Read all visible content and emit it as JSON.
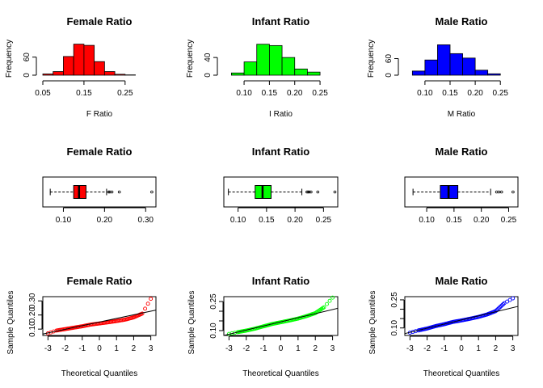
{
  "chart_data": [
    {
      "type": "histogram",
      "title": "Female Ratio",
      "xlabel": "F Ratio",
      "ylabel": "Frequency",
      "color": "#ff0000",
      "bin_edges": [
        0.05,
        0.075,
        0.1,
        0.125,
        0.15,
        0.175,
        0.2,
        0.225,
        0.25,
        0.275,
        0.3,
        0.325
      ],
      "counts": [
        4,
        12,
        62,
        103,
        99,
        45,
        12,
        3,
        1,
        0,
        0
      ],
      "xlim": [
        0.05,
        0.325
      ],
      "ylim": [
        0,
        110
      ],
      "xticks": [
        0.05,
        0.15,
        0.25
      ],
      "xtick_labels": [
        "0.05",
        "0.15",
        "0.25"
      ],
      "yticks": [
        0,
        60
      ],
      "ytick_labels": [
        "0",
        "60"
      ]
    },
    {
      "type": "histogram",
      "title": "Infant Ratio",
      "xlabel": "I Ratio",
      "ylabel": "Frequency",
      "color": "#00ff00",
      "bin_edges": [
        0.075,
        0.1,
        0.125,
        0.15,
        0.175,
        0.2,
        0.225,
        0.25
      ],
      "counts": [
        5,
        30,
        70,
        67,
        40,
        14,
        7
      ],
      "xlim": [
        0.06,
        0.285
      ],
      "ylim": [
        0,
        75
      ],
      "xticks": [
        0.1,
        0.15,
        0.2,
        0.25
      ],
      "xtick_labels": [
        "0.10",
        "0.15",
        "0.20",
        "0.25"
      ],
      "yticks": [
        0,
        40
      ],
      "ytick_labels": [
        "0",
        "40"
      ]
    },
    {
      "type": "histogram",
      "title": "Male Ratio",
      "xlabel": "M Ratio",
      "ylabel": "Frequency",
      "color": "#0000ff",
      "bin_edges": [
        0.075,
        0.1,
        0.125,
        0.15,
        0.175,
        0.2,
        0.225,
        0.25
      ],
      "counts": [
        15,
        55,
        110,
        78,
        62,
        18,
        5
      ],
      "xlim": [
        0.06,
        0.285
      ],
      "ylim": [
        0,
        120
      ],
      "xticks": [
        0.1,
        0.15,
        0.2,
        0.25
      ],
      "xtick_labels": [
        "0.10",
        "0.15",
        "0.20",
        "0.25"
      ],
      "yticks": [
        0,
        60
      ],
      "ytick_labels": [
        "0",
        "60"
      ]
    },
    {
      "type": "boxplot",
      "title": "Female Ratio",
      "color": "#ff0000",
      "q1": 0.125,
      "median": 0.138,
      "q3": 0.155,
      "whisker_low": 0.068,
      "whisker_high": 0.205,
      "outliers": [
        0.21,
        0.213,
        0.218,
        0.236,
        0.315
      ],
      "xlim": [
        0.05,
        0.325
      ],
      "xticks": [
        0.1,
        0.2,
        0.3
      ],
      "xtick_labels": [
        "0.10",
        "0.20",
        "0.30"
      ]
    },
    {
      "type": "boxplot",
      "title": "Infant Ratio",
      "color": "#00ff00",
      "q1": 0.13,
      "median": 0.143,
      "q3": 0.158,
      "whisker_low": 0.083,
      "whisker_high": 0.212,
      "outliers": [
        0.221,
        0.223,
        0.225,
        0.228,
        0.24,
        0.27
      ],
      "xlim": [
        0.075,
        0.275
      ],
      "xticks": [
        0.1,
        0.15,
        0.2,
        0.25
      ],
      "xtick_labels": [
        "0.10",
        "0.15",
        "0.20",
        "0.25"
      ]
    },
    {
      "type": "boxplot",
      "title": "Male Ratio",
      "color": "#0000ff",
      "q1": 0.125,
      "median": 0.14,
      "q3": 0.157,
      "whisker_low": 0.075,
      "whisker_high": 0.217,
      "outliers": [
        0.228,
        0.232,
        0.237,
        0.258
      ],
      "xlim": [
        0.06,
        0.267
      ],
      "xticks": [
        0.1,
        0.15,
        0.2,
        0.25
      ],
      "xtick_labels": [
        "0.10",
        "0.15",
        "0.20",
        "0.25"
      ]
    },
    {
      "type": "scatter",
      "subtype": "qqplot",
      "title": "Female Ratio",
      "xlabel": "Theoretical Quantiles",
      "ylabel": "Sample Quantiles",
      "color": "#ff0000",
      "quantile_points": [
        [
          -3,
          0.07
        ],
        [
          -2.5,
          0.09
        ],
        [
          -2,
          0.1
        ],
        [
          -1.5,
          0.11
        ],
        [
          -1,
          0.12
        ],
        [
          -0.5,
          0.132
        ],
        [
          0,
          0.14
        ],
        [
          0.5,
          0.148
        ],
        [
          1,
          0.157
        ],
        [
          1.5,
          0.167
        ],
        [
          2,
          0.183
        ],
        [
          2.5,
          0.21
        ],
        [
          3,
          0.315
        ]
      ],
      "line": [
        [
          -3.3,
          0.065
        ],
        [
          3.3,
          0.235
        ]
      ],
      "xlim": [
        -3.3,
        3.3
      ],
      "ylim": [
        0.055,
        0.33
      ],
      "xticks": [
        -3,
        -2,
        -1,
        0,
        1,
        2,
        3
      ],
      "xtick_labels": [
        "-3",
        "-2",
        "-1",
        "0",
        "1",
        "2",
        "3"
      ],
      "yticks": [
        0.1,
        0.2,
        0.3
      ],
      "ytick_labels": [
        "0.10",
        "0.20",
        "0.30"
      ]
    },
    {
      "type": "scatter",
      "subtype": "qqplot",
      "title": "Infant Ratio",
      "xlabel": "Theoretical Quantiles",
      "ylabel": "Sample Quantiles",
      "color": "#00ff00",
      "quantile_points": [
        [
          -3,
          0.083
        ],
        [
          -2.5,
          0.092
        ],
        [
          -2,
          0.1
        ],
        [
          -1.5,
          0.11
        ],
        [
          -1,
          0.122
        ],
        [
          -0.5,
          0.134
        ],
        [
          0,
          0.143
        ],
        [
          0.5,
          0.152
        ],
        [
          1,
          0.162
        ],
        [
          1.5,
          0.175
        ],
        [
          2,
          0.19
        ],
        [
          2.5,
          0.22
        ],
        [
          3,
          0.27
        ]
      ],
      "line": [
        [
          -3.3,
          0.075
        ],
        [
          3.3,
          0.215
        ]
      ],
      "xlim": [
        -3.3,
        3.3
      ],
      "ylim": [
        0.075,
        0.275
      ],
      "xticks": [
        -3,
        -2,
        -1,
        0,
        1,
        2,
        3
      ],
      "xtick_labels": [
        "-3",
        "-2",
        "-1",
        "0",
        "1",
        "2",
        "3"
      ],
      "yticks": [
        0.1,
        0.15,
        0.2,
        0.25
      ],
      "ytick_labels": [
        "0.10",
        "",
        "",
        "0.25"
      ]
    },
    {
      "type": "scatter",
      "subtype": "qqplot",
      "title": "Male Ratio",
      "xlabel": "Theoretical Quantiles",
      "ylabel": "Sample Quantiles",
      "color": "#0000ff",
      "quantile_points": [
        [
          -3,
          0.075
        ],
        [
          -2.5,
          0.087
        ],
        [
          -2,
          0.097
        ],
        [
          -1.5,
          0.11
        ],
        [
          -1,
          0.12
        ],
        [
          -0.5,
          0.132
        ],
        [
          0,
          0.14
        ],
        [
          0.5,
          0.149
        ],
        [
          1,
          0.159
        ],
        [
          1.5,
          0.172
        ],
        [
          2,
          0.19
        ],
        [
          2.5,
          0.232
        ],
        [
          3,
          0.258
        ]
      ],
      "line": [
        [
          -3.3,
          0.07
        ],
        [
          3.3,
          0.215
        ]
      ],
      "xlim": [
        -3.3,
        3.3
      ],
      "ylim": [
        0.06,
        0.267
      ],
      "xticks": [
        -3,
        -2,
        -1,
        0,
        1,
        2,
        3
      ],
      "xtick_labels": [
        "-3",
        "-2",
        "-1",
        "0",
        "1",
        "2",
        "3"
      ],
      "yticks": [
        0.1,
        0.15,
        0.2,
        0.25
      ],
      "ytick_labels": [
        "0.10",
        "",
        "",
        "0.25"
      ]
    }
  ]
}
